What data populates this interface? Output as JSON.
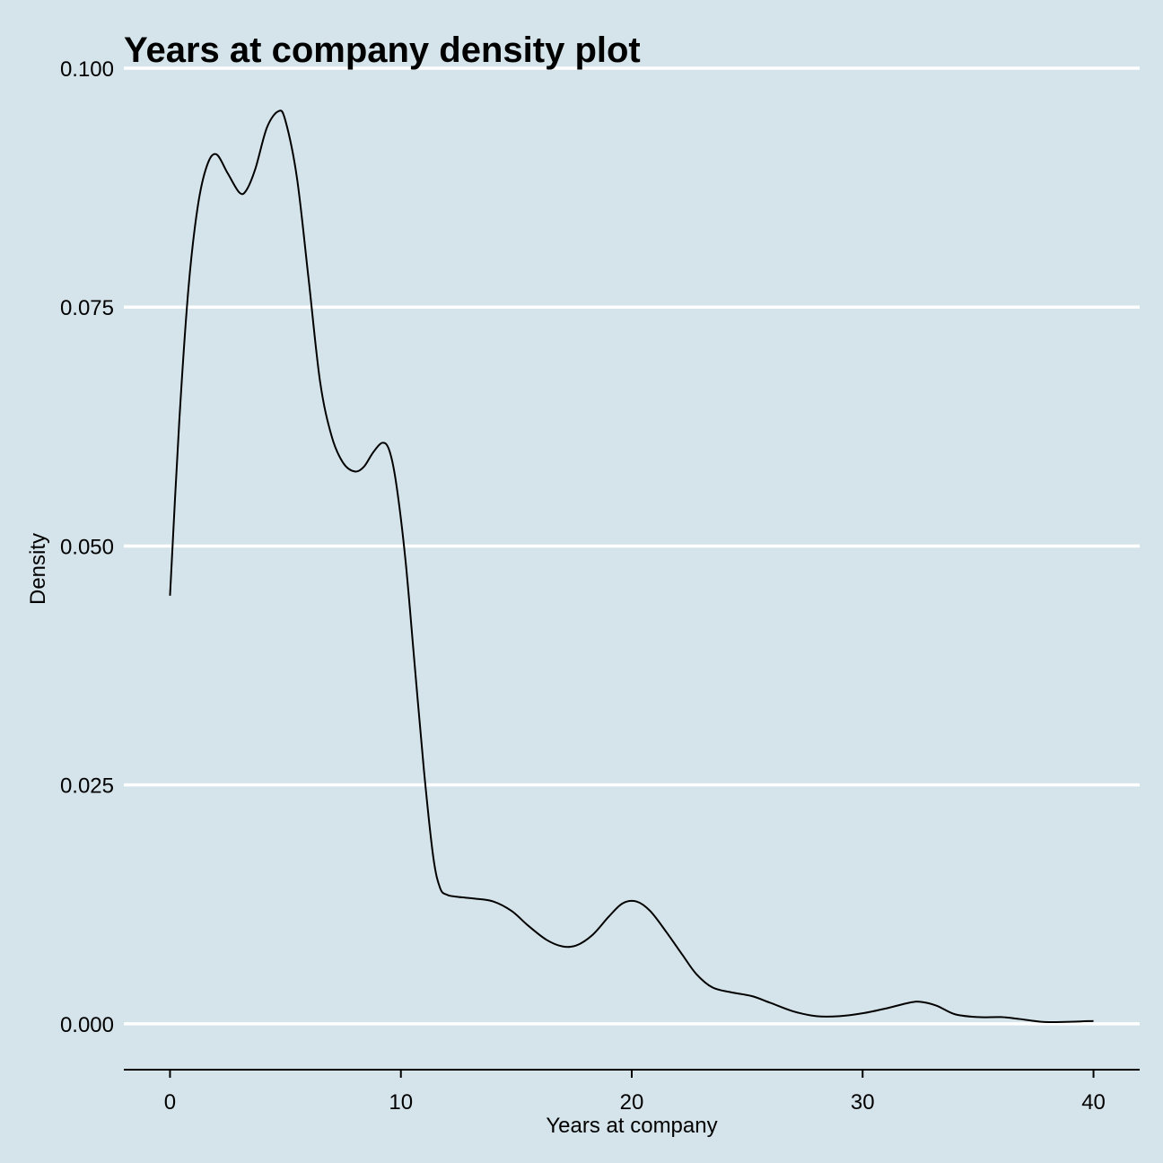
{
  "chart_data": {
    "type": "line",
    "title": "Years at company density plot",
    "xlabel": "Years at company",
    "ylabel": "Density",
    "xlim": [
      -2,
      42
    ],
    "ylim": [
      -0.0048,
      0.1
    ],
    "x_ticks": [
      0,
      10,
      20,
      30,
      40
    ],
    "x_tick_labels": [
      "0",
      "10",
      "20",
      "30",
      "40"
    ],
    "y_ticks": [
      0,
      0.025,
      0.05,
      0.075,
      0.1
    ],
    "y_tick_labels": [
      "0.000",
      "0.025",
      "0.050",
      "0.075",
      "0.100"
    ],
    "grid": "horizontal-major",
    "legend": "none",
    "colors": {
      "background": "#d5e4eb",
      "gridline": "#ffffff",
      "line": "#000000",
      "axis": "#000000"
    },
    "series": [
      {
        "x": [
          0,
          0.4,
          0.8,
          1.2,
          1.6,
          2.0,
          2.5,
          3.0,
          3.3,
          3.7,
          4.2,
          4.7,
          5.0,
          5.5,
          6.0,
          6.5,
          7.0,
          7.5,
          8.0,
          8.4,
          8.8,
          9.2,
          9.5,
          9.8,
          10.2,
          10.6,
          11.0,
          11.4,
          11.7,
          12.0,
          12.4,
          12.8,
          13.2,
          14.0,
          14.8,
          15.5,
          16.3,
          17.0,
          17.6,
          18.3,
          19.0,
          19.6,
          20.2,
          20.8,
          21.5,
          22.2,
          22.8,
          23.5,
          24.3,
          25.2,
          26.0,
          27.0,
          28.0,
          29.0,
          30.0,
          31.0,
          32.0,
          32.5,
          33.2,
          34.0,
          35.0,
          36.0,
          36.8,
          37.8,
          38.8,
          40.0
        ],
        "y": [
          0.0448,
          0.063,
          0.077,
          0.0855,
          0.0898,
          0.091,
          0.089,
          0.087,
          0.0872,
          0.0895,
          0.0938,
          0.0955,
          0.0945,
          0.0885,
          0.078,
          0.0672,
          0.0615,
          0.0587,
          0.0578,
          0.0583,
          0.0598,
          0.0608,
          0.06,
          0.0565,
          0.0485,
          0.0375,
          0.0265,
          0.0175,
          0.0142,
          0.0135,
          0.0133,
          0.0132,
          0.0131,
          0.0128,
          0.0118,
          0.0103,
          0.0088,
          0.0081,
          0.0082,
          0.0093,
          0.0112,
          0.0126,
          0.0128,
          0.0118,
          0.0096,
          0.0072,
          0.0052,
          0.0038,
          0.0033,
          0.0029,
          0.0022,
          0.0013,
          0.0008,
          0.0008,
          0.0011,
          0.0016,
          0.0022,
          0.0023,
          0.0019,
          0.001,
          0.0007,
          0.0007,
          0.0005,
          0.0002,
          0.0002,
          0.0003
        ]
      }
    ]
  }
}
